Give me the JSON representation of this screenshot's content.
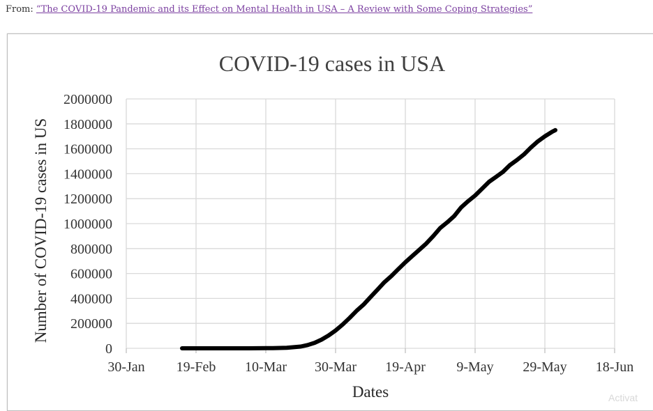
{
  "source": {
    "prefix": "From:",
    "link_text": "“The COVID-19 Pandemic and its Effect on Mental Health in USA – A Review with Some Coping Strategies”"
  },
  "watermark": "Activat",
  "colors": {
    "line": "#000000",
    "grid": "#d9d9d9",
    "link": "#7b3fa0"
  },
  "chart_data": {
    "type": "line",
    "title": "COVID-19 cases in USA",
    "xlabel": "Dates",
    "ylabel": "Number of COVID-19 cases in US",
    "x_ticks": [
      "30-Jan",
      "19-Feb",
      "10-Mar",
      "30-Mar",
      "19-Apr",
      "9-May",
      "29-May",
      "18-Jun"
    ],
    "y_ticks": [
      "0",
      "200000",
      "400000",
      "600000",
      "800000",
      "1000000",
      "1200000",
      "1400000",
      "1600000",
      "1800000",
      "2000000"
    ],
    "xlim": [
      "2020-01-30",
      "2020-06-18"
    ],
    "ylim": [
      0,
      2000000
    ],
    "grid": true,
    "legend": "none",
    "series": [
      {
        "points": [
          [
            "2020-02-15",
            0
          ],
          [
            "2020-02-25",
            0
          ],
          [
            "2020-03-05",
            0
          ],
          [
            "2020-03-12",
            1500
          ],
          [
            "2020-03-16",
            4500
          ],
          [
            "2020-03-20",
            14000
          ],
          [
            "2020-03-22",
            26000
          ],
          [
            "2020-03-24",
            44000
          ],
          [
            "2020-03-26",
            70000
          ],
          [
            "2020-03-28",
            103000
          ],
          [
            "2020-03-30",
            143000
          ],
          [
            "2020-04-01",
            190000
          ],
          [
            "2020-04-03",
            243000
          ],
          [
            "2020-04-05",
            300000
          ],
          [
            "2020-04-07",
            350000
          ],
          [
            "2020-04-09",
            410000
          ],
          [
            "2020-04-11",
            470000
          ],
          [
            "2020-04-13",
            530000
          ],
          [
            "2020-04-15",
            580000
          ],
          [
            "2020-04-17",
            635000
          ],
          [
            "2020-04-19",
            690000
          ],
          [
            "2020-04-21",
            740000
          ],
          [
            "2020-04-23",
            790000
          ],
          [
            "2020-04-25",
            840000
          ],
          [
            "2020-04-27",
            900000
          ],
          [
            "2020-04-29",
            965000
          ],
          [
            "2020-05-01",
            1010000
          ],
          [
            "2020-05-03",
            1060000
          ],
          [
            "2020-05-05",
            1130000
          ],
          [
            "2020-05-07",
            1180000
          ],
          [
            "2020-05-09",
            1225000
          ],
          [
            "2020-05-11",
            1280000
          ],
          [
            "2020-05-13",
            1335000
          ],
          [
            "2020-05-15",
            1375000
          ],
          [
            "2020-05-17",
            1415000
          ],
          [
            "2020-05-19",
            1470000
          ],
          [
            "2020-05-21",
            1510000
          ],
          [
            "2020-05-23",
            1555000
          ],
          [
            "2020-05-25",
            1610000
          ],
          [
            "2020-05-27",
            1660000
          ],
          [
            "2020-05-29",
            1700000
          ],
          [
            "2020-05-31",
            1735000
          ],
          [
            "2020-06-01",
            1750000
          ]
        ]
      }
    ]
  }
}
